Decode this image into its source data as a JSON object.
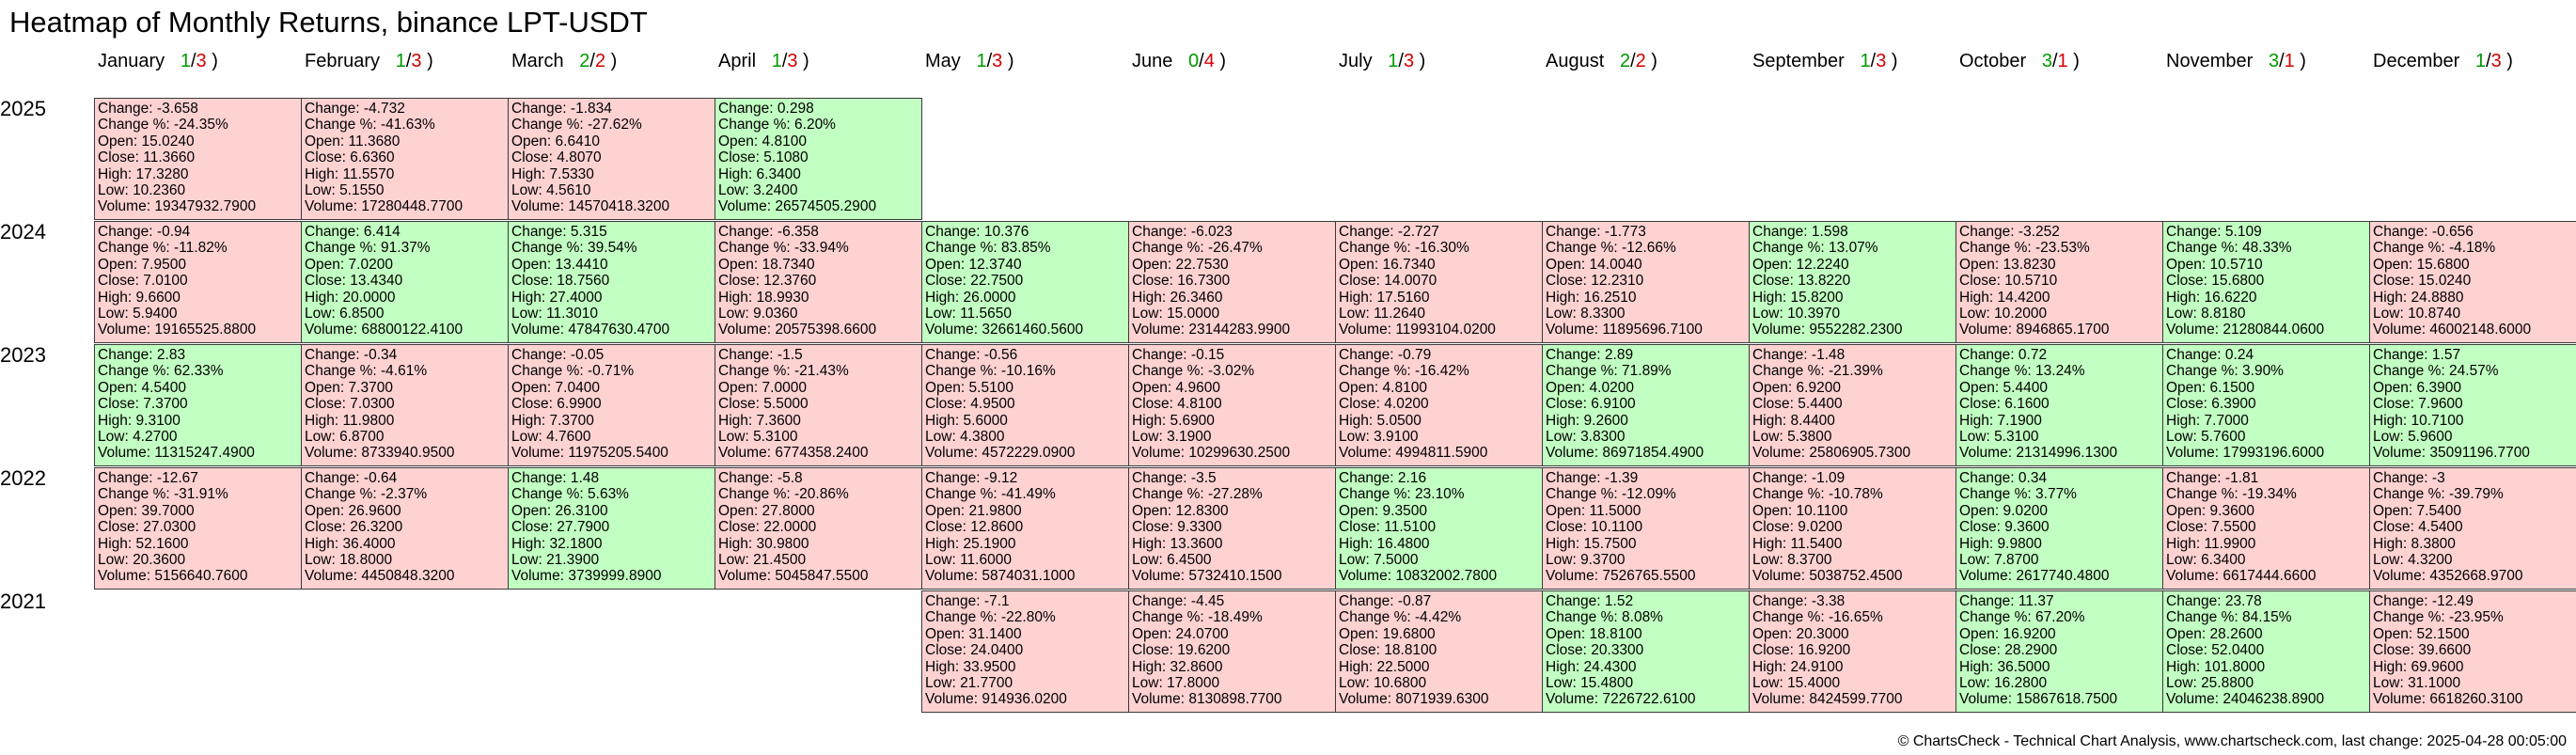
{
  "title": "Heatmap of Monthly Returns, binance LPT-USDT",
  "footer": "© ChartsCheck - Technical Chart Analysis, www.chartscheck.com, last change: 2025-04-28 00:05:00",
  "colors": {
    "up_cell": "#c2ffc2",
    "down_cell": "#ffd2d2",
    "up_count": "#009a00",
    "down_count": "#d40000"
  },
  "chart_data": {
    "type": "heatmap",
    "title": "Heatmap of Monthly Returns, binance LPT-USDT",
    "field_labels": {
      "change": "Change",
      "change_pct": "Change %",
      "open": "Open",
      "close": "Close",
      "high": "High",
      "low": "Low",
      "volume": "Volume"
    },
    "months": [
      {
        "name": "January",
        "up": "1",
        "down": "3"
      },
      {
        "name": "February",
        "up": "1",
        "down": "3"
      },
      {
        "name": "March",
        "up": "2",
        "down": "2"
      },
      {
        "name": "April",
        "up": "1",
        "down": "3"
      },
      {
        "name": "May",
        "up": "1",
        "down": "3"
      },
      {
        "name": "June",
        "up": "0",
        "down": "4"
      },
      {
        "name": "July",
        "up": "1",
        "down": "3"
      },
      {
        "name": "August",
        "up": "2",
        "down": "2"
      },
      {
        "name": "September",
        "up": "1",
        "down": "3"
      },
      {
        "name": "October",
        "up": "3",
        "down": "1"
      },
      {
        "name": "November",
        "up": "3",
        "down": "1"
      },
      {
        "name": "December",
        "up": "1",
        "down": "3"
      }
    ],
    "years": [
      {
        "year": "2025",
        "cells": [
          {
            "change": "-3.658",
            "change_pct": "-24.35%",
            "open": "15.0240",
            "close": "11.3660",
            "high": "17.3280",
            "low": "10.2360",
            "volume": "19347932.7900"
          },
          {
            "change": "-4.732",
            "change_pct": "-41.63%",
            "open": "11.3680",
            "close": "6.6360",
            "high": "11.5570",
            "low": "5.1550",
            "volume": "17280448.7700"
          },
          {
            "change": "-1.834",
            "change_pct": "-27.62%",
            "open": "6.6410",
            "close": "4.8070",
            "high": "7.5330",
            "low": "4.5610",
            "volume": "14570418.3200"
          },
          {
            "change": "0.298",
            "change_pct": "6.20%",
            "open": "4.8100",
            "close": "5.1080",
            "high": "6.3400",
            "low": "3.2400",
            "volume": "26574505.2900"
          },
          null,
          null,
          null,
          null,
          null,
          null,
          null,
          null
        ]
      },
      {
        "year": "2024",
        "cells": [
          {
            "change": "-0.94",
            "change_pct": "-11.82%",
            "open": "7.9500",
            "close": "7.0100",
            "high": "9.6600",
            "low": "5.9400",
            "volume": "19165525.8800"
          },
          {
            "change": "6.414",
            "change_pct": "91.37%",
            "open": "7.0200",
            "close": "13.4340",
            "high": "20.0000",
            "low": "6.8500",
            "volume": "68800122.4100"
          },
          {
            "change": "5.315",
            "change_pct": "39.54%",
            "open": "13.4410",
            "close": "18.7560",
            "high": "27.4000",
            "low": "11.3010",
            "volume": "47847630.4700"
          },
          {
            "change": "-6.358",
            "change_pct": "-33.94%",
            "open": "18.7340",
            "close": "12.3760",
            "high": "18.9930",
            "low": "9.0360",
            "volume": "20575398.6600"
          },
          {
            "change": "10.376",
            "change_pct": "83.85%",
            "open": "12.3740",
            "close": "22.7500",
            "high": "26.0000",
            "low": "11.5650",
            "volume": "32661460.5600"
          },
          {
            "change": "-6.023",
            "change_pct": "-26.47%",
            "open": "22.7530",
            "close": "16.7300",
            "high": "26.3460",
            "low": "15.0000",
            "volume": "23144283.9900"
          },
          {
            "change": "-2.727",
            "change_pct": "-16.30%",
            "open": "16.7340",
            "close": "14.0070",
            "high": "17.5160",
            "low": "11.2640",
            "volume": "11993104.0200"
          },
          {
            "change": "-1.773",
            "change_pct": "-12.66%",
            "open": "14.0040",
            "close": "12.2310",
            "high": "16.2510",
            "low": "8.3300",
            "volume": "11895696.7100"
          },
          {
            "change": "1.598",
            "change_pct": "13.07%",
            "open": "12.2240",
            "close": "13.8220",
            "high": "15.8200",
            "low": "10.3970",
            "volume": "9552282.2300"
          },
          {
            "change": "-3.252",
            "change_pct": "-23.53%",
            "open": "13.8230",
            "close": "10.5710",
            "high": "14.4200",
            "low": "10.2000",
            "volume": "8946865.1700"
          },
          {
            "change": "5.109",
            "change_pct": "48.33%",
            "open": "10.5710",
            "close": "15.6800",
            "high": "16.6220",
            "low": "8.8180",
            "volume": "21280844.0600"
          },
          {
            "change": "-0.656",
            "change_pct": "-4.18%",
            "open": "15.6800",
            "close": "15.0240",
            "high": "24.8880",
            "low": "10.8740",
            "volume": "46002148.6000"
          }
        ]
      },
      {
        "year": "2023",
        "cells": [
          {
            "change": "2.83",
            "change_pct": "62.33%",
            "open": "4.5400",
            "close": "7.3700",
            "high": "9.3100",
            "low": "4.2700",
            "volume": "11315247.4900"
          },
          {
            "change": "-0.34",
            "change_pct": "-4.61%",
            "open": "7.3700",
            "close": "7.0300",
            "high": "11.9800",
            "low": "6.8700",
            "volume": "8733940.9500"
          },
          {
            "change": "-0.05",
            "change_pct": "-0.71%",
            "open": "7.0400",
            "close": "6.9900",
            "high": "7.3700",
            "low": "4.7600",
            "volume": "11975205.5400"
          },
          {
            "change": "-1.5",
            "change_pct": "-21.43%",
            "open": "7.0000",
            "close": "5.5000",
            "high": "7.3600",
            "low": "5.3100",
            "volume": "6774358.2400"
          },
          {
            "change": "-0.56",
            "change_pct": "-10.16%",
            "open": "5.5100",
            "close": "4.9500",
            "high": "5.6000",
            "low": "4.3800",
            "volume": "4572229.0900"
          },
          {
            "change": "-0.15",
            "change_pct": "-3.02%",
            "open": "4.9600",
            "close": "4.8100",
            "high": "5.6900",
            "low": "3.1900",
            "volume": "10299630.2500"
          },
          {
            "change": "-0.79",
            "change_pct": "-16.42%",
            "open": "4.8100",
            "close": "4.0200",
            "high": "5.0500",
            "low": "3.9100",
            "volume": "4994811.5900"
          },
          {
            "change": "2.89",
            "change_pct": "71.89%",
            "open": "4.0200",
            "close": "6.9100",
            "high": "9.2600",
            "low": "3.8300",
            "volume": "86971854.4900"
          },
          {
            "change": "-1.48",
            "change_pct": "-21.39%",
            "open": "6.9200",
            "close": "5.4400",
            "high": "8.4400",
            "low": "5.3800",
            "volume": "25806905.7300"
          },
          {
            "change": "0.72",
            "change_pct": "13.24%",
            "open": "5.4400",
            "close": "6.1600",
            "high": "7.1900",
            "low": "5.3100",
            "volume": "21314996.1300"
          },
          {
            "change": "0.24",
            "change_pct": "3.90%",
            "open": "6.1500",
            "close": "6.3900",
            "high": "7.7000",
            "low": "5.7600",
            "volume": "17993196.6000"
          },
          {
            "change": "1.57",
            "change_pct": "24.57%",
            "open": "6.3900",
            "close": "7.9600",
            "high": "10.7100",
            "low": "5.9600",
            "volume": "35091196.7700"
          }
        ]
      },
      {
        "year": "2022",
        "cells": [
          {
            "change": "-12.67",
            "change_pct": "-31.91%",
            "open": "39.7000",
            "close": "27.0300",
            "high": "52.1600",
            "low": "20.3600",
            "volume": "5156640.7600"
          },
          {
            "change": "-0.64",
            "change_pct": "-2.37%",
            "open": "26.9600",
            "close": "26.3200",
            "high": "36.4000",
            "low": "18.8000",
            "volume": "4450848.3200"
          },
          {
            "change": "1.48",
            "change_pct": "5.63%",
            "open": "26.3100",
            "close": "27.7900",
            "high": "32.1800",
            "low": "21.3900",
            "volume": "3739999.8900"
          },
          {
            "change": "-5.8",
            "change_pct": "-20.86%",
            "open": "27.8000",
            "close": "22.0000",
            "high": "30.9800",
            "low": "21.4500",
            "volume": "5045847.5500"
          },
          {
            "change": "-9.12",
            "change_pct": "-41.49%",
            "open": "21.9800",
            "close": "12.8600",
            "high": "25.1900",
            "low": "11.6000",
            "volume": "5874031.1000"
          },
          {
            "change": "-3.5",
            "change_pct": "-27.28%",
            "open": "12.8300",
            "close": "9.3300",
            "high": "13.3600",
            "low": "6.4500",
            "volume": "5732410.1500"
          },
          {
            "change": "2.16",
            "change_pct": "23.10%",
            "open": "9.3500",
            "close": "11.5100",
            "high": "16.4800",
            "low": "7.5000",
            "volume": "10832002.7800"
          },
          {
            "change": "-1.39",
            "change_pct": "-12.09%",
            "open": "11.5000",
            "close": "10.1100",
            "high": "15.7500",
            "low": "9.3700",
            "volume": "7526765.5500"
          },
          {
            "change": "-1.09",
            "change_pct": "-10.78%",
            "open": "10.1100",
            "close": "9.0200",
            "high": "11.5400",
            "low": "8.3700",
            "volume": "5038752.4500"
          },
          {
            "change": "0.34",
            "change_pct": "3.77%",
            "open": "9.0200",
            "close": "9.3600",
            "high": "9.9800",
            "low": "7.8700",
            "volume": "2617740.4800"
          },
          {
            "change": "-1.81",
            "change_pct": "-19.34%",
            "open": "9.3600",
            "close": "7.5500",
            "high": "11.9900",
            "low": "6.3400",
            "volume": "6617444.6600"
          },
          {
            "change": "-3",
            "change_pct": "-39.79%",
            "open": "7.5400",
            "close": "4.5400",
            "high": "8.3800",
            "low": "4.3200",
            "volume": "4352668.9700"
          }
        ]
      },
      {
        "year": "2021",
        "cells": [
          null,
          null,
          null,
          null,
          {
            "change": "-7.1",
            "change_pct": "-22.80%",
            "open": "31.1400",
            "close": "24.0400",
            "high": "33.9500",
            "low": "21.7700",
            "volume": "914936.0200"
          },
          {
            "change": "-4.45",
            "change_pct": "-18.49%",
            "open": "24.0700",
            "close": "19.6200",
            "high": "32.8600",
            "low": "17.8000",
            "volume": "8130898.7700"
          },
          {
            "change": "-0.87",
            "change_pct": "-4.42%",
            "open": "19.6800",
            "close": "18.8100",
            "high": "22.5000",
            "low": "10.6800",
            "volume": "8071939.6300"
          },
          {
            "change": "1.52",
            "change_pct": "8.08%",
            "open": "18.8100",
            "close": "20.3300",
            "high": "24.4300",
            "low": "15.4800",
            "volume": "7226722.6100"
          },
          {
            "change": "-3.38",
            "change_pct": "-16.65%",
            "open": "20.3000",
            "close": "16.9200",
            "high": "24.9100",
            "low": "15.4000",
            "volume": "8424599.7700"
          },
          {
            "change": "11.37",
            "change_pct": "67.20%",
            "open": "16.9200",
            "close": "28.2900",
            "high": "36.5000",
            "low": "16.2800",
            "volume": "15867618.7500"
          },
          {
            "change": "23.78",
            "change_pct": "84.15%",
            "open": "28.2600",
            "close": "52.0400",
            "high": "101.8000",
            "low": "25.8800",
            "volume": "24046238.8900"
          },
          {
            "change": "-12.49",
            "change_pct": "-23.95%",
            "open": "52.1500",
            "close": "39.6600",
            "high": "69.9600",
            "low": "31.1000",
            "volume": "6618260.3100"
          }
        ]
      }
    ]
  }
}
